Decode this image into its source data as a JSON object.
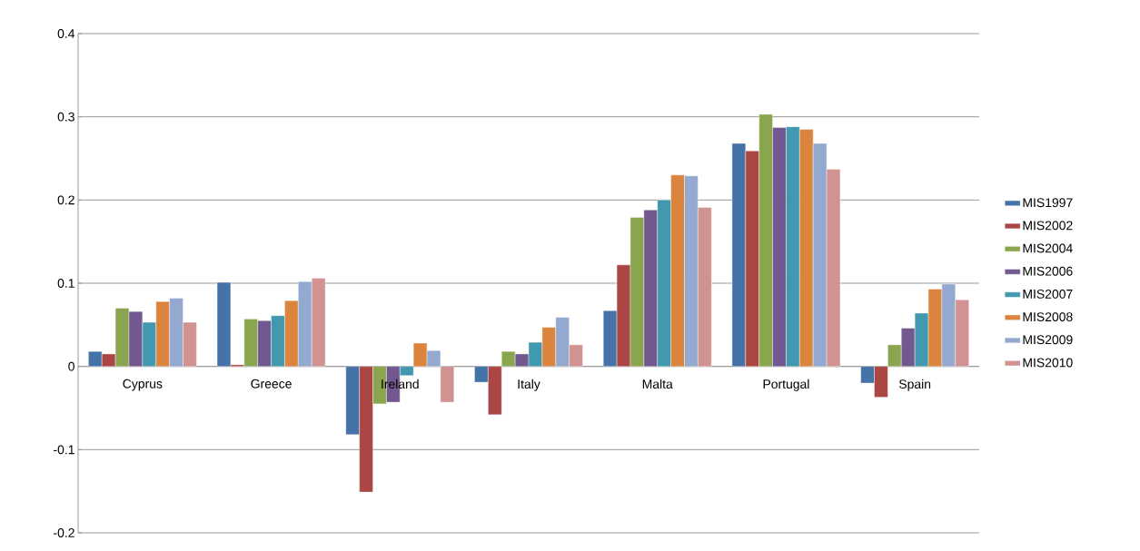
{
  "chart_data": {
    "type": "bar",
    "categories": [
      "Cyprus",
      "Greece",
      "Ireland",
      "Italy",
      "Malta",
      "Portugal",
      "Spain"
    ],
    "series": [
      {
        "name": "MIS1997",
        "color": "#4572a7",
        "values": [
          0.018,
          0.101,
          -0.082,
          -0.019,
          0.067,
          0.268,
          -0.02
        ]
      },
      {
        "name": "MIS2002",
        "color": "#aa4643",
        "values": [
          0.015,
          0.002,
          -0.151,
          -0.058,
          0.122,
          0.259,
          -0.037
        ]
      },
      {
        "name": "MIS2004",
        "color": "#89a54e",
        "values": [
          0.07,
          0.057,
          -0.045,
          0.018,
          0.179,
          0.303,
          0.026
        ]
      },
      {
        "name": "MIS2006",
        "color": "#71588f",
        "values": [
          0.066,
          0.055,
          -0.043,
          0.015,
          0.188,
          0.287,
          0.046
        ]
      },
      {
        "name": "MIS2007",
        "color": "#4198af",
        "values": [
          0.053,
          0.061,
          -0.011,
          0.029,
          0.2,
          0.288,
          0.064
        ]
      },
      {
        "name": "MIS2008",
        "color": "#db843d",
        "values": [
          0.078,
          0.079,
          0.028,
          0.047,
          0.23,
          0.285,
          0.093
        ]
      },
      {
        "name": "MIS2009",
        "color": "#93a9cf",
        "values": [
          0.082,
          0.102,
          0.019,
          0.059,
          0.229,
          0.268,
          0.099
        ]
      },
      {
        "name": "MIS2010",
        "color": "#d19392",
        "values": [
          0.053,
          0.106,
          -0.043,
          0.026,
          0.191,
          0.237,
          0.08
        ]
      }
    ],
    "ylim": [
      -0.2,
      0.4
    ],
    "yticks": [
      -0.2,
      -0.1,
      0,
      0.1,
      0.2,
      0.3,
      0.4
    ],
    "grid": "y",
    "legend": "right"
  }
}
